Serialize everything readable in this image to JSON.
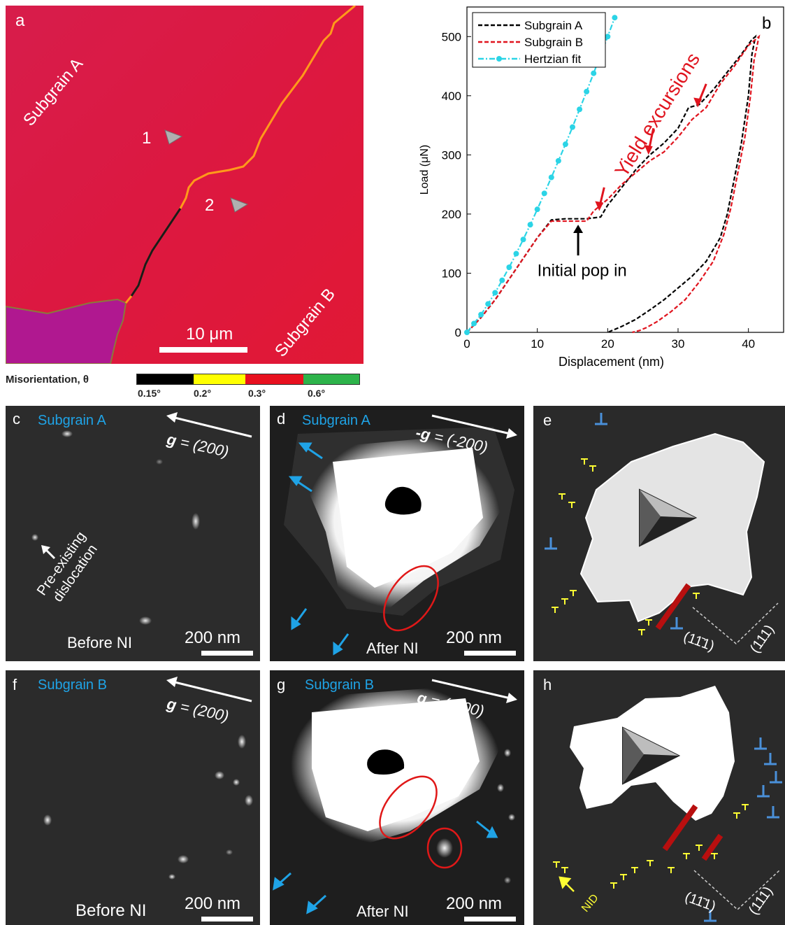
{
  "panel_a": {
    "label": "a",
    "region_a": "Subgrain A",
    "region_b": "Subgrain B",
    "indent_1": "1",
    "indent_2": "2",
    "scalebar": "10 μm"
  },
  "colorbar": {
    "title": "Misorientation, θ",
    "ticks": [
      "0.15°",
      "0.2°",
      "0.3°",
      "0.6°"
    ],
    "colors": [
      "#000000",
      "#ffff00",
      "#e8101f",
      "#2db34a"
    ]
  },
  "panel_b": {
    "label": "b"
  },
  "chart_data": {
    "type": "line",
    "xlabel": "Displacement (nm)",
    "ylabel": "Load (μN)",
    "xlim": [
      0,
      45
    ],
    "ylim": [
      0,
      550
    ],
    "xticks": [
      0,
      10,
      20,
      30,
      40
    ],
    "yticks": [
      0,
      100,
      200,
      300,
      400,
      500
    ],
    "legend_position": "top-left",
    "series": [
      {
        "name": "Subgrain A",
        "color": "#000000",
        "style": "dashed",
        "x": [
          0,
          2,
          4,
          6,
          8,
          10,
          12,
          14,
          17,
          19,
          20,
          22,
          24,
          26,
          28,
          30,
          31.5,
          33,
          35,
          37,
          39,
          40.5,
          41,
          40.5,
          40,
          39,
          38,
          37,
          36,
          34,
          32,
          30,
          28,
          26,
          24,
          22,
          20
        ],
        "y": [
          0,
          25,
          55,
          90,
          125,
          160,
          190,
          192,
          192,
          195,
          215,
          245,
          275,
          300,
          320,
          345,
          380,
          385,
          410,
          440,
          470,
          495,
          500,
          470,
          400,
          320,
          260,
          200,
          160,
          120,
          95,
          75,
          55,
          38,
          22,
          10,
          0
        ]
      },
      {
        "name": "Subgrain B",
        "color": "#e0141e",
        "style": "dashed",
        "x": [
          0,
          2,
          4,
          6,
          8,
          10,
          12,
          14,
          16,
          17,
          18,
          20,
          22,
          24,
          26,
          28,
          30,
          32,
          34,
          36,
          38,
          40,
          41.5,
          40.8,
          40.3,
          39.5,
          38.5,
          37.5,
          36.5,
          35,
          33,
          31,
          29,
          27,
          25.5,
          24.5,
          23.5
        ],
        "y": [
          0,
          25,
          55,
          90,
          125,
          160,
          188,
          188,
          188,
          188,
          205,
          225,
          250,
          270,
          290,
          305,
          330,
          360,
          380,
          420,
          450,
          485,
          500,
          460,
          400,
          330,
          270,
          210,
          165,
          120,
          85,
          55,
          35,
          18,
          8,
          3,
          0
        ]
      },
      {
        "name": "Hertzian fit",
        "color": "#2bd4e6",
        "style": "dashdot-marker",
        "x": [
          0,
          1,
          2,
          3,
          4,
          5,
          6,
          7,
          8,
          9,
          10,
          11,
          12,
          13,
          14,
          15,
          16,
          17,
          18,
          19,
          20,
          21
        ],
        "y": [
          0,
          15,
          30,
          48,
          67,
          88,
          110,
          133,
          157,
          182,
          208,
          235,
          262,
          290,
          318,
          347,
          377,
          407,
          438,
          469,
          500,
          532
        ]
      }
    ],
    "annotations": [
      "Yield excursions",
      "Initial pop in"
    ]
  },
  "panel_c": {
    "label": "c",
    "subgrain": "Subgrain A",
    "g_prefix": "g",
    "g_value": " = (200)",
    "arrow_text": "Pre-existing\ndislocation",
    "arrow_line1": "Pre-existing",
    "arrow_line2": "dislocation",
    "caption": "Before NI",
    "scalebar": "200 nm"
  },
  "panel_d": {
    "label": "d",
    "subgrain": "Subgrain A",
    "g_prefix": "-g",
    "g_value": " = (-200)",
    "caption": "After NI",
    "scalebar": "200 nm"
  },
  "panel_e": {
    "label": "e",
    "plane_1": "(11̄1)",
    "plane_2": "(111)"
  },
  "panel_f": {
    "label": "f",
    "subgrain": "Subgrain B",
    "g_prefix": "g",
    "g_value": " = (200)",
    "caption": "Before NI",
    "scalebar": "200 nm"
  },
  "panel_g": {
    "label": "g",
    "subgrain": "Subgrain B",
    "g_prefix": "g",
    "g_value": " = (-200)",
    "caption": "After NI",
    "scalebar": "200 nm"
  },
  "panel_h": {
    "label": "h",
    "nid": "NID",
    "plane_1": "(11̄1)",
    "plane_2": "(111)"
  }
}
